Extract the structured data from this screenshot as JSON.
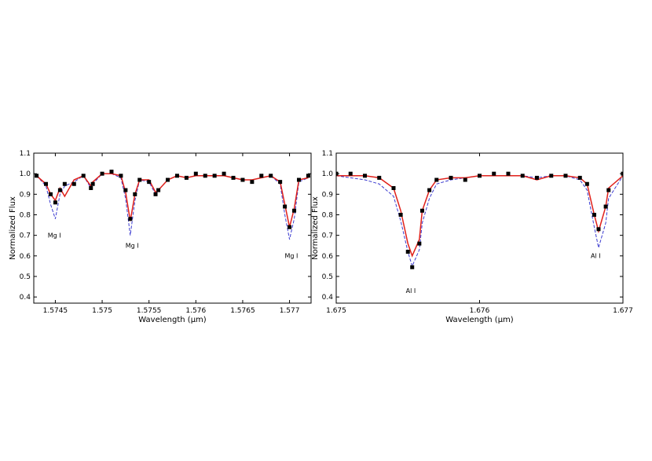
{
  "chart_data": [
    {
      "type": "line",
      "xlabel": "Wavelength (μm)",
      "ylabel": "Normalized Flux",
      "xlim": [
        1.57427,
        1.57723
      ],
      "ylim": [
        0.37,
        1.1
      ],
      "xticks": [
        1.5745,
        1.575,
        1.5755,
        1.576,
        1.5765,
        1.577
      ],
      "yticks": [
        0.4,
        0.5,
        0.6,
        0.7,
        0.8,
        0.9,
        {
          "value": 1,
          "label": "1.0"
        },
        1.1
      ],
      "x": [
        1.5743,
        1.5744,
        1.57445,
        1.5745,
        1.57455,
        1.5746,
        1.5747,
        1.5748,
        1.57488,
        1.5749,
        1.575,
        1.5751,
        1.5752,
        1.57525,
        1.5753,
        1.57535,
        1.5754,
        1.5755,
        1.57557,
        1.5756,
        1.5757,
        1.5758,
        1.5759,
        1.576,
        1.5761,
        1.5762,
        1.5763,
        1.5764,
        1.5765,
        1.5766,
        1.5767,
        1.5768,
        1.5769,
        1.57695,
        1.577,
        1.57705,
        1.5771,
        1.5772
      ],
      "series": [
        {
          "color": "#3a3ad0",
          "linestyle": "dashed",
          "values": [
            0.99,
            0.94,
            0.85,
            0.78,
            0.9,
            0.94,
            0.96,
            0.99,
            0.93,
            0.95,
            1.0,
            1.0,
            0.98,
            0.88,
            0.7,
            0.87,
            0.97,
            0.96,
            0.9,
            0.92,
            0.97,
            0.99,
            0.98,
            0.99,
            0.99,
            0.99,
            0.99,
            0.98,
            0.97,
            0.97,
            0.98,
            0.99,
            0.95,
            0.8,
            0.68,
            0.78,
            0.96,
            0.98
          ]
        },
        {
          "color": "#e0201a",
          "linestyle": "solid",
          "values": [
            0.99,
            0.95,
            0.9,
            0.87,
            0.93,
            0.89,
            0.97,
            0.99,
            0.94,
            0.96,
            1.0,
            1.0,
            0.99,
            0.91,
            0.77,
            0.9,
            0.97,
            0.97,
            0.91,
            0.92,
            0.97,
            0.99,
            0.98,
            0.99,
            0.99,
            0.99,
            0.99,
            0.98,
            0.97,
            0.97,
            0.98,
            0.99,
            0.96,
            0.85,
            0.74,
            0.83,
            0.97,
            0.98
          ]
        },
        {
          "color": "#000000",
          "marker": "square",
          "values": [
            0.99,
            0.95,
            0.9,
            0.86,
            0.92,
            0.95,
            0.95,
            0.99,
            0.93,
            0.95,
            1.0,
            1.01,
            0.99,
            0.92,
            0.78,
            0.9,
            0.97,
            0.96,
            0.9,
            0.92,
            0.97,
            0.99,
            0.98,
            1.0,
            0.99,
            0.99,
            1.0,
            0.98,
            0.97,
            0.96,
            0.99,
            0.99,
            0.96,
            0.84,
            0.74,
            0.82,
            0.97,
            0.99
          ]
        }
      ],
      "annotations": [
        {
          "text": "Mg I",
          "x": 1.57449,
          "y": 0.69
        },
        {
          "text": "Mg I",
          "x": 1.57532,
          "y": 0.64
        },
        {
          "text": "Mg I",
          "x": 1.57702,
          "y": 0.59
        }
      ]
    },
    {
      "type": "line",
      "xlabel": "Wavelength (μm)",
      "ylabel": "Normalized Flux",
      "xlim": [
        1.675,
        1.677
      ],
      "ylim": [
        0.37,
        1.1
      ],
      "xticks": [
        1.675,
        1.676,
        1.677
      ],
      "yticks": [
        0.4,
        0.5,
        0.6,
        0.7,
        0.8,
        0.9,
        {
          "value": 1,
          "label": "1.0"
        },
        1.1
      ],
      "x": [
        1.675,
        1.6751,
        1.6752,
        1.6753,
        1.6754,
        1.67545,
        1.6755,
        1.67553,
        1.67558,
        1.6756,
        1.67565,
        1.6757,
        1.6758,
        1.6759,
        1.676,
        1.6761,
        1.6762,
        1.6763,
        1.6764,
        1.6765,
        1.6766,
        1.6767,
        1.67675,
        1.6768,
        1.67683,
        1.67688,
        1.6769,
        1.677
      ],
      "series": [
        {
          "color": "#3a3ad0",
          "linestyle": "dashed",
          "values": [
            0.99,
            0.98,
            0.97,
            0.95,
            0.89,
            0.77,
            0.62,
            0.55,
            0.63,
            0.76,
            0.88,
            0.95,
            0.97,
            0.98,
            0.99,
            0.99,
            0.99,
            0.99,
            0.98,
            0.99,
            0.99,
            0.97,
            0.92,
            0.74,
            0.64,
            0.76,
            0.88,
            0.99
          ]
        },
        {
          "color": "#e0201a",
          "linestyle": "solid",
          "values": [
            0.99,
            0.99,
            0.99,
            0.98,
            0.93,
            0.82,
            0.66,
            0.6,
            0.68,
            0.82,
            0.92,
            0.97,
            0.98,
            0.98,
            0.99,
            0.99,
            0.99,
            0.99,
            0.97,
            0.99,
            0.99,
            0.98,
            0.95,
            0.8,
            0.72,
            0.84,
            0.93,
            0.99
          ]
        },
        {
          "color": "#000000",
          "marker": "square",
          "values": [
            1.0,
            1.0,
            0.99,
            0.98,
            0.93,
            0.8,
            0.62,
            0.545,
            0.66,
            0.82,
            0.92,
            0.97,
            0.98,
            0.97,
            0.99,
            1.0,
            1.0,
            0.99,
            0.98,
            0.99,
            0.99,
            0.98,
            0.95,
            0.8,
            0.73,
            0.84,
            0.92,
            1.0
          ]
        }
      ],
      "annotations": [
        {
          "text": "Al I",
          "x": 1.67552,
          "y": 0.42
        },
        {
          "text": "Al I",
          "x": 1.67681,
          "y": 0.59
        }
      ]
    }
  ]
}
